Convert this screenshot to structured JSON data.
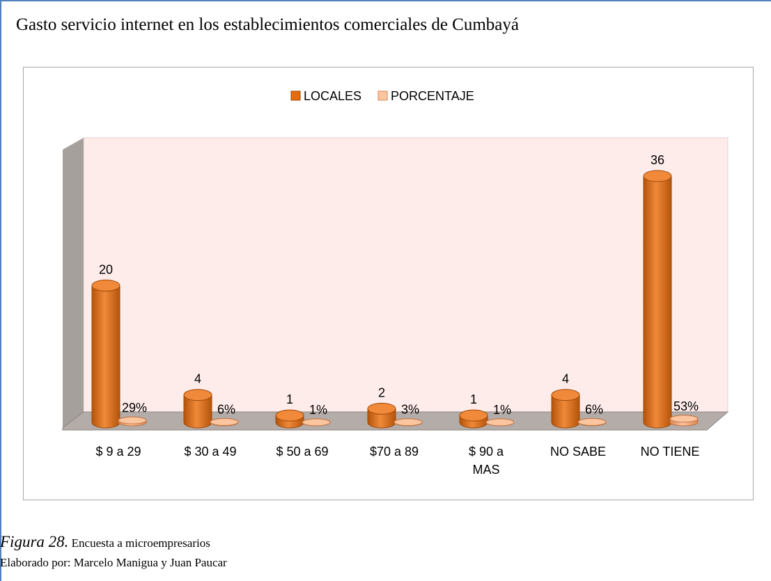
{
  "title": "Gasto servicio internet en los establecimientos comerciales de Cumbayá",
  "chart_data": {
    "type": "bar",
    "categories": [
      "$ 9 a 29",
      "$ 30 a 49",
      "$ 50 a 69",
      "$70 a 89",
      "$ 90 a\nMAS",
      "NO SABE",
      "NO TIENE"
    ],
    "series": [
      {
        "name": "LOCALES",
        "color": "#e46c0a",
        "values": [
          20,
          4,
          1,
          2,
          1,
          4,
          36
        ]
      },
      {
        "name": "PORCENTAJE",
        "color": "#f5a676",
        "values": [
          0.29,
          0.06,
          0.01,
          0.03,
          0.01,
          0.06,
          0.53
        ],
        "value_labels": [
          "29%",
          "6%",
          "1%",
          "3%",
          "1%",
          "6%",
          "53%"
        ]
      }
    ],
    "legend": "top"
  },
  "caption": {
    "figure": "Figura 28.",
    "text": "Encuesta a microempresarios"
  },
  "credit": "Elaborado por: Marcelo Manigua y Juan Paucar"
}
